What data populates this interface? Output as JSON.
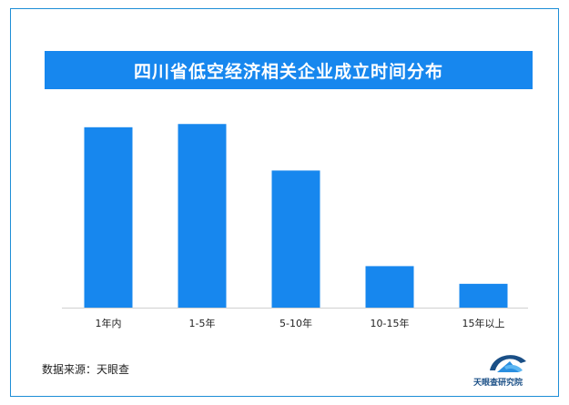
{
  "chart_data": {
    "type": "bar",
    "title": "四川省低空经济相关企业成立时间分布",
    "categories": [
      "1年内",
      "1-5年",
      "5-10年",
      "10-15年",
      "15年以上"
    ],
    "values": [
      100,
      101.8,
      76,
      23,
      13.2
    ],
    "ylim": [
      0,
      110
    ],
    "xlabel": "",
    "ylabel": "",
    "grid": false,
    "legend": "none",
    "bar_color": "#1787ee"
  },
  "footer": {
    "source": "数据来源：天眼查",
    "logo_text": "天眼查研究院"
  },
  "colors": {
    "accent": "#1787ee",
    "border": "#1e8ed6",
    "logo": "#1a4f86"
  }
}
